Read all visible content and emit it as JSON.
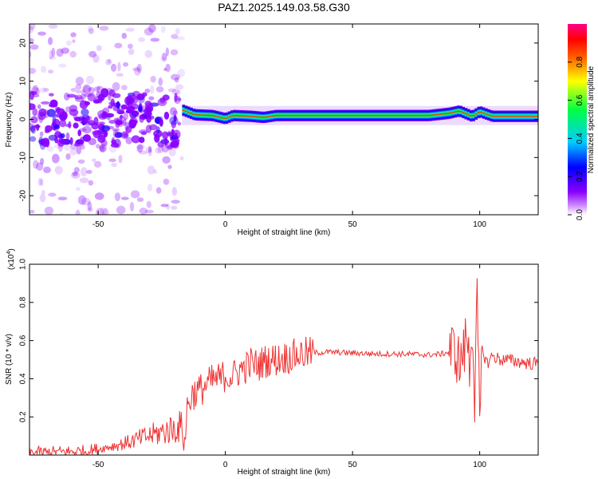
{
  "title": "PAZ1.2025.149.03.58.G30",
  "chart_data": [
    {
      "type": "heatmap",
      "xlabel": "Height of straight line (km)",
      "ylabel": "Frequency (Hz)",
      "xlim": [
        -77,
        123
      ],
      "ylim": [
        -25,
        25
      ],
      "xticks": [
        -50,
        0,
        50,
        100
      ],
      "yticks": [
        -20,
        -10,
        0,
        10,
        20
      ],
      "colorbar": {
        "label": "Normalized spectral amplitude",
        "range": [
          0,
          1
        ],
        "ticks": [
          0.0,
          0.2,
          0.4,
          0.6,
          0.8
        ],
        "colormap": [
          "#ffffff",
          "#8800ff",
          "#0000ff",
          "#00ccff",
          "#00ff44",
          "#ffff00",
          "#ff6600",
          "#ff0000",
          "#ff0088"
        ]
      },
      "noise_region": {
        "x_range": [
          -77,
          -17
        ],
        "freq_spread": 25
      },
      "signal_band": {
        "x_range": [
          -17,
          123
        ],
        "center_frequency": 1,
        "bandwidth": 1.5
      },
      "signal_center_track": [
        {
          "x": -17,
          "y": 2.5
        },
        {
          "x": -12,
          "y": 1.2
        },
        {
          "x": -5,
          "y": 1.0
        },
        {
          "x": 0,
          "y": 0.2
        },
        {
          "x": 3,
          "y": 1.0
        },
        {
          "x": 10,
          "y": 0.8
        },
        {
          "x": 15,
          "y": 0.5
        },
        {
          "x": 20,
          "y": 1.0
        },
        {
          "x": 40,
          "y": 1.0
        },
        {
          "x": 60,
          "y": 1.0
        },
        {
          "x": 80,
          "y": 1.0
        },
        {
          "x": 88,
          "y": 1.6
        },
        {
          "x": 92,
          "y": 2.2
        },
        {
          "x": 97,
          "y": 0.8
        },
        {
          "x": 100,
          "y": 2.0
        },
        {
          "x": 105,
          "y": 0.8
        },
        {
          "x": 110,
          "y": 0.8
        },
        {
          "x": 123,
          "y": 0.8
        }
      ]
    },
    {
      "type": "line",
      "xlabel": "Height of straight line (km)",
      "ylabel": "SNR (10 * v/v)",
      "multiplier_label": "(x10",
      "multiplier_exponent": "4",
      "xlim": [
        -77,
        123
      ],
      "ylim": [
        0,
        10000
      ],
      "xticks": [
        -50,
        0,
        50,
        100
      ],
      "yticks": [
        2000,
        4000,
        6000,
        8000,
        10000
      ],
      "ytick_labels": [
        "0.2",
        "0.4",
        "0.6",
        "0.8",
        "1.0"
      ],
      "line_color": "#ee3333",
      "series": [
        {
          "x": [
            -77,
            -65,
            -55,
            -50,
            -45,
            -40,
            -35,
            -30,
            -25,
            -20,
            -17,
            -16,
            -15,
            -13,
            -10,
            -8,
            -5,
            -2,
            0,
            3,
            5,
            8,
            10,
            13,
            15,
            18,
            20,
            25,
            30,
            35,
            40,
            50,
            60,
            70,
            80,
            85,
            88,
            90,
            92,
            94,
            95,
            96,
            97,
            98,
            99,
            100,
            101,
            103,
            105,
            108,
            110,
            115,
            120,
            123
          ],
          "y": [
            100,
            150,
            200,
            300,
            450,
            600,
            800,
            1000,
            1200,
            1400,
            1500,
            600,
            2500,
            3200,
            3400,
            3600,
            3900,
            4000,
            4200,
            4100,
            4400,
            4600,
            4800,
            4700,
            4900,
            5000,
            5000,
            5150,
            5300,
            5350,
            5400,
            5350,
            5300,
            5300,
            5250,
            5300,
            5400,
            5600,
            4800,
            5500,
            6500,
            4500,
            7000,
            3000,
            8000,
            1500,
            5500,
            4800,
            5200,
            5000,
            5000,
            4900,
            4800,
            4800
          ]
        }
      ]
    }
  ]
}
